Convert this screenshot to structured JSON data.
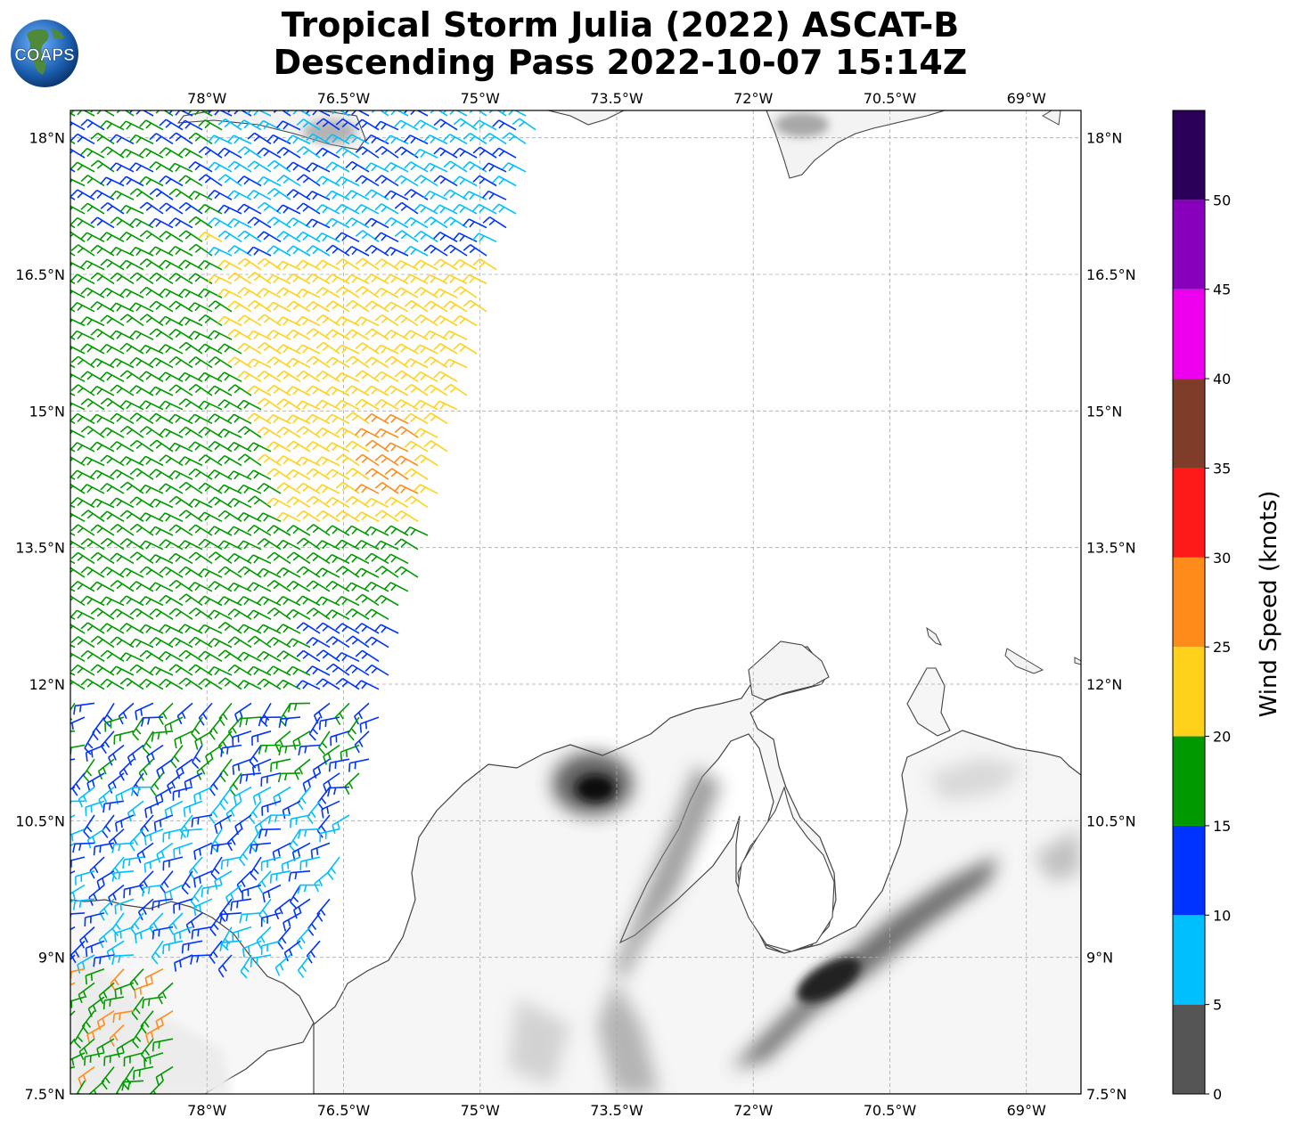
{
  "title": {
    "line1": "Tropical Storm Julia (2022) ASCAT-B",
    "line2": "Descending Pass 2022-10-07 15:14Z"
  },
  "logo": {
    "text": "COAPS",
    "icon": "globe-logo"
  },
  "map": {
    "lon_range": [
      -79.5,
      -68.4
    ],
    "lat_range": [
      7.5,
      18.3
    ],
    "lon_ticks": [
      "78°W",
      "76.5°W",
      "75°W",
      "73.5°W",
      "72°W",
      "70.5°W",
      "69°W"
    ],
    "lat_ticks": [
      "18°N",
      "16.5°N",
      "15°N",
      "13.5°N",
      "12°N",
      "10.5°N",
      "9°N",
      "7.5°N"
    ],
    "gridlines": true,
    "terrain": "grayscale elevation shading"
  },
  "colorbar": {
    "title": "Wind Speed (knots)",
    "ticks": [
      "0",
      "5",
      "10",
      "15",
      "20",
      "25",
      "30",
      "35",
      "40",
      "45",
      "50"
    ],
    "colors": [
      "#555555",
      "#00bfff",
      "#0033ff",
      "#009900",
      "#ffd11a",
      "#ff8c1a",
      "#ff1a1a",
      "#7f3d29",
      "#ee00ee",
      "#8800bb",
      "#2a0059"
    ]
  }
}
